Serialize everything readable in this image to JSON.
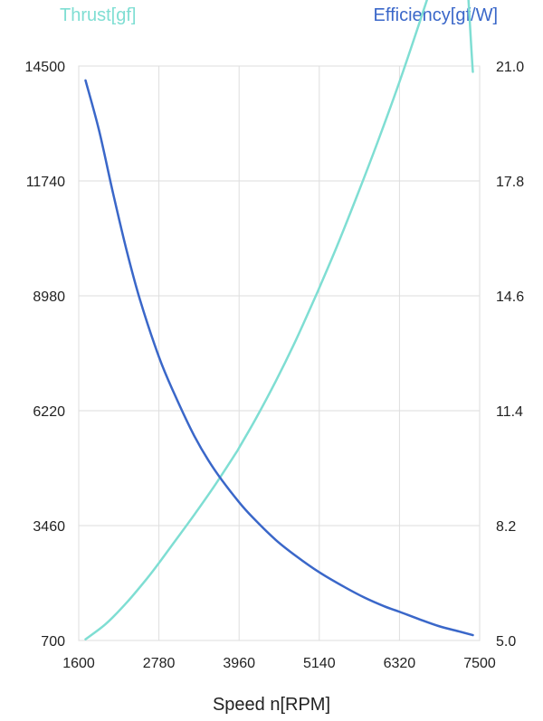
{
  "chart_data": {
    "type": "line",
    "xlabel": "Speed n[RPM]",
    "ylabel_left": "Thrust[gf]",
    "ylabel_right": "Efficiency[gf/W]",
    "x_ticks": [
      "1600",
      "2780",
      "3960",
      "5140",
      "6320",
      "7500"
    ],
    "y_left_ticks": [
      "700",
      "3460",
      "6220",
      "8980",
      "11740",
      "14500"
    ],
    "y_right_ticks": [
      "5.0",
      "8.2",
      "11.4",
      "14.6",
      "17.8",
      "21.0"
    ],
    "xlim": [
      1600,
      7500
    ],
    "ylim_left": [
      700,
      14500
    ],
    "ylim_right": [
      5.0,
      21.0
    ],
    "grid": true,
    "series": [
      {
        "name": "Thrust[gf]",
        "axis": "left",
        "color": "#7fded3",
        "x": [
          1700,
          2000,
          2300,
          2600,
          2780,
          3000,
          3300,
          3600,
          3900,
          3960,
          4200,
          4500,
          4800,
          5100,
          5140,
          5400,
          5700,
          6000,
          6320,
          6600,
          6900,
          7200,
          7400
        ],
        "y": [
          730,
          1100,
          1600,
          2180,
          2560,
          3050,
          3720,
          4420,
          5170,
          5330,
          6010,
          6930,
          7930,
          9020,
          9170,
          10170,
          11400,
          12680,
          14120,
          15470,
          16960,
          18520,
          14360
        ]
      },
      {
        "name": "Efficiency[gf/W]",
        "axis": "right",
        "color": "#3a67c9",
        "x": [
          1700,
          1900,
          2100,
          2300,
          2500,
          2780,
          3000,
          3300,
          3600,
          3960,
          4200,
          4500,
          4800,
          5140,
          5500,
          5800,
          6100,
          6320,
          6600,
          6900,
          7200,
          7400
        ],
        "y": [
          20.6,
          19.2,
          17.5,
          15.9,
          14.5,
          12.9,
          11.9,
          10.7,
          9.75,
          8.85,
          8.35,
          7.8,
          7.35,
          6.9,
          6.5,
          6.2,
          5.95,
          5.8,
          5.6,
          5.4,
          5.25,
          5.15
        ]
      }
    ]
  }
}
